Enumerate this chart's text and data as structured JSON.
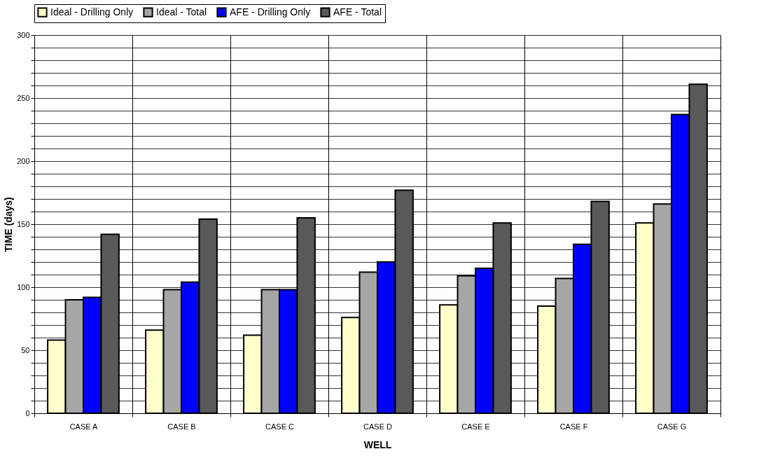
{
  "chart_data": {
    "type": "bar",
    "xlabel": "WELL",
    "ylabel": "TIME (days)",
    "categories": [
      "CASE A",
      "CASE B",
      "CASE C",
      "CASE D",
      "CASE E",
      "CASE F",
      "CASE G"
    ],
    "series": [
      {
        "name": "Ideal - Drilling Only",
        "color": "#ffffcc",
        "values": [
          58,
          66,
          62,
          76,
          86,
          85,
          151
        ]
      },
      {
        "name": "Ideal - Total",
        "color": "#a6a6a6",
        "values": [
          90,
          98,
          98,
          112,
          109,
          107,
          166
        ]
      },
      {
        "name": "AFE - Drilling Only",
        "color": "#0000ff",
        "values": [
          92,
          104,
          98,
          120,
          115,
          134,
          237
        ]
      },
      {
        "name": "AFE - Total",
        "color": "#595959",
        "values": [
          142,
          154,
          155,
          177,
          151,
          168,
          261
        ]
      }
    ],
    "ylim": [
      0,
      300
    ],
    "yticks": [
      0,
      {
        "value": 10,
        "label": null
      },
      {
        "value": 20,
        "label": null
      },
      {
        "value": 30,
        "label": null
      },
      {
        "value": 40,
        "label": null
      },
      50,
      {
        "value": 60,
        "label": null
      },
      {
        "value": 70,
        "label": null
      },
      {
        "value": 80,
        "label": null
      },
      {
        "value": 90,
        "label": null
      },
      100,
      {
        "value": 110,
        "label": null
      },
      {
        "value": 120,
        "label": null
      },
      {
        "value": 130,
        "label": null
      },
      {
        "value": 140,
        "label": null
      },
      150,
      {
        "value": 160,
        "label": null
      },
      {
        "value": 170,
        "label": null
      },
      {
        "value": 180,
        "label": null
      },
      {
        "value": 190,
        "label": null
      },
      200,
      {
        "value": 210,
        "label": null
      },
      {
        "value": 220,
        "label": null
      },
      {
        "value": 230,
        "label": null
      },
      {
        "value": 240,
        "label": null
      },
      250,
      {
        "value": 260,
        "label": null
      },
      {
        "value": 270,
        "label": null
      },
      {
        "value": 280,
        "label": null
      },
      {
        "value": 290,
        "label": null
      },
      300
    ],
    "grid": true,
    "legend": "top"
  }
}
